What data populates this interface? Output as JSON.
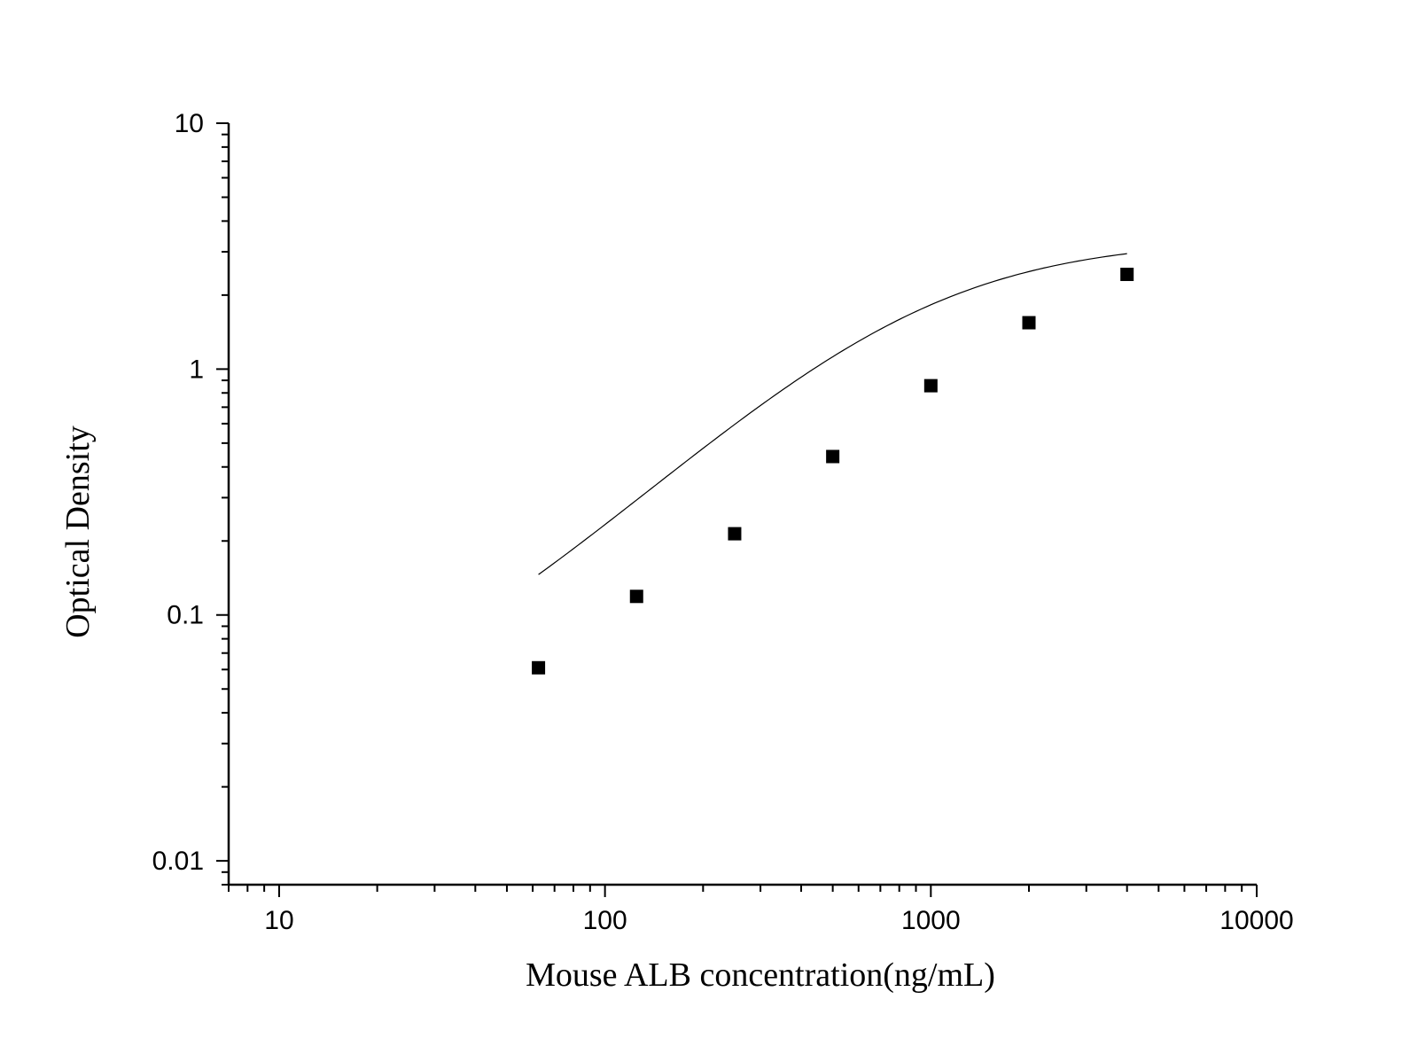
{
  "chart_data": {
    "type": "scatter",
    "title": "",
    "xlabel": "Mouse ALB concentration(ng/mL)",
    "ylabel": "Optical Density",
    "xscale": "log",
    "yscale": "log",
    "xlim": [
      7,
      10000
    ],
    "ylim": [
      0.008,
      10
    ],
    "x_ticks": [
      10,
      100,
      1000,
      10000
    ],
    "x_tick_labels": [
      "10",
      "100",
      "1000",
      "10000"
    ],
    "y_ticks": [
      0.01,
      0.1,
      1,
      10
    ],
    "y_tick_labels": [
      "0.01",
      "0.1",
      "1",
      "10"
    ],
    "grid": false,
    "series": [
      {
        "marker": "square",
        "fit_line": true,
        "x": [
          62.5,
          125,
          250,
          500,
          1000,
          2000,
          4000
        ],
        "y": [
          0.061,
          0.119,
          0.214,
          0.441,
          0.856,
          1.544,
          2.428
        ]
      }
    ],
    "colors": {
      "marker": "#000000",
      "line": "#000000",
      "axis": "#000000"
    }
  }
}
